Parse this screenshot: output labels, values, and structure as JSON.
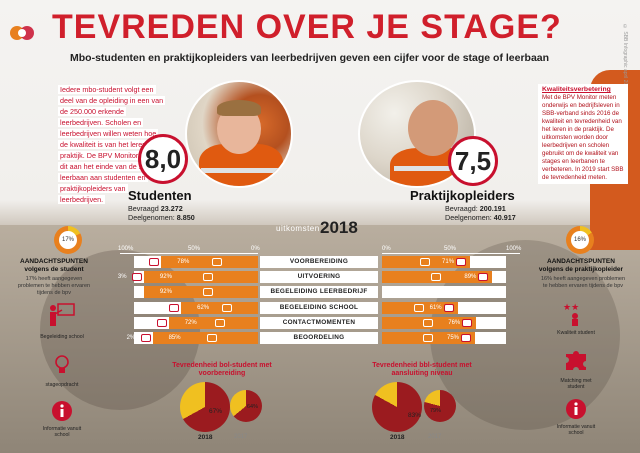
{
  "header": {
    "title": "TEVREDEN OVER JE STAGE?",
    "subtitle": "Mbo-studenten en praktijkopleiders van leerbedrijven geven een cijfer voor de stage of leerbaan",
    "credit": "© SBB Infographic april 2018"
  },
  "intro_text": "Iedere mbo-student volgt een deel van de opleiding in een van de 250.000 erkende leerbedrijven. Scholen en leerbedrijven willen weten hoe de kwaliteit is van het leren in de praktijk. De BPV Monitor vraagt dit aan het einde van de stage of leerbaan aan studenten en praktijkopleiders van leerbedrijven.",
  "sidebar": {
    "heading": "Kwaliteitsverbetering",
    "text": "Met de BPV Monitor meten onderwijs en bedrijfsleven in SBB-verband sinds 2016 de kwaliteit en tevredenheid van het leren in de praktijk. De uitkomsten worden door leerbedrijven en scholen gebruikt om de kwaliteit van stages en leerbanen te verbeteren. In 2019 start SBB de tevredenheid meten."
  },
  "students": {
    "score": "8,0",
    "label": "Studenten",
    "asked_label": "Bevraagd",
    "asked": "23.272",
    "participants_label": "Deelgenomen:",
    "participants": "8.850"
  },
  "trainers": {
    "score": "7,5",
    "label": "Praktijkopleiders",
    "asked_label": "Bevraagd:",
    "asked": "200.191",
    "participants_label": "Deelgenomen:",
    "participants": "40.917"
  },
  "results": {
    "label": "uitkomsten",
    "year": "2018",
    "axis_left": [
      "100%",
      "50%",
      "0%"
    ],
    "axis_right": [
      "0%",
      "50%",
      "100%"
    ]
  },
  "chart_data": {
    "type": "bar",
    "categories": [
      "VOORBEREIDING",
      "UITVOERING",
      "BEGELEIDING LEERBEDRIJF",
      "BEGELEIDING SCHOOL",
      "CONTACTMOMENTEN",
      "BEOORDELING"
    ],
    "series": [
      {
        "name": "",
        "values": [
          78,
          92,
          92,
          62,
          72,
          85
        ]
      },
      {
        "name": "",
        "values": [
          9,
          3,
          null,
          16,
          28,
          2
        ]
      },
      {
        "name": "",
        "values": [
          71,
          89,
          null,
          61,
          76,
          75
        ]
      },
      {
        "name": "",
        "values": [
          9,
          3,
          null,
          11,
          24,
          3
        ]
      }
    ],
    "xlim": [
      0,
      100
    ]
  },
  "attention_students": {
    "percent": "17%",
    "heading": "AANDACHTSPUNTEN",
    "subheading": "volgens de student",
    "desc": "17% heeft aangegeven problemen te hebben ervaren tijdens de bpv"
  },
  "attention_trainers": {
    "percent": "16%",
    "heading": "AANDACHTSPUNTEN",
    "subheading": "volgens de praktijkopleider",
    "desc": "16% heeft aangegeven problemen te hebben ervaren tijdens de bpv"
  },
  "left_icons": [
    {
      "icon": "teacher-icon",
      "caption": "Begeleiding school"
    },
    {
      "icon": "lightbulb-icon",
      "caption": "stageopdracht"
    },
    {
      "icon": "info-icon",
      "caption": "Informatie vanuit school"
    }
  ],
  "right_icons": [
    {
      "icon": "stars-icon",
      "caption": "Kwaliteit student"
    },
    {
      "icon": "puzzle-icon",
      "caption": "Matching met student"
    },
    {
      "icon": "info-icon",
      "caption": "Informatie vanuit school"
    }
  ],
  "pie_bol": {
    "title": "Tevredenheid bol-student met voorbereiding",
    "big_value": "67%",
    "small_value": "64%",
    "big_year": "2018",
    "small_year": "2017",
    "big_fraction": 0.67,
    "small_fraction": 0.64
  },
  "pie_bbl": {
    "title": "Tevredenheid bbl-student met aansluiting niveau",
    "big_value": "83%",
    "small_value": "79%",
    "big_year": "2018",
    "small_year": "2017",
    "big_fraction": 0.83,
    "small_fraction": 0.79
  },
  "colors": {
    "red": "#c8102e",
    "orange": "#e8801e",
    "yellow": "#f0c020",
    "dark_red": "#9b1b1f"
  }
}
